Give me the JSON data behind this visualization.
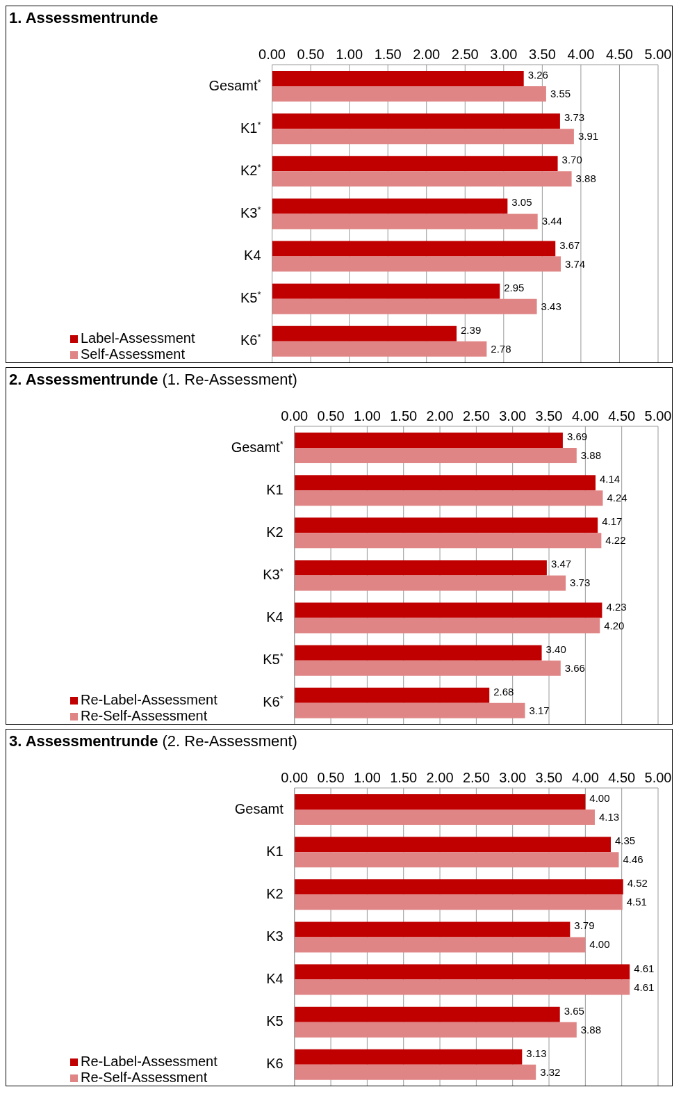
{
  "chart_data": [
    {
      "type": "bar",
      "orientation": "horizontal",
      "title": "1. Assessmentrunde",
      "categories": [
        "Gesamt$^{*}$",
        "K1$^{*}$",
        "K2$^{*}$",
        "K3$^{*}$",
        "K4",
        "K5$^{*}$",
        "K6$^{*}$"
      ],
      "xlim": [
        0,
        5
      ],
      "xticks": [
        {
          "value": 0,
          "label": "0.00"
        },
        {
          "value": 0.5,
          "label": "0.50"
        },
        {
          "value": 1,
          "label": "1.00"
        },
        {
          "value": 1.5,
          "label": "1.50"
        },
        {
          "value": 2,
          "label": "2.00"
        },
        {
          "value": 2.5,
          "label": "2.50"
        },
        {
          "value": 3,
          "label": "3.00"
        },
        {
          "value": 3.5,
          "label": "3.50"
        },
        {
          "value": 4,
          "label": "4.00"
        },
        {
          "value": 4.5,
          "label": "4.50"
        },
        {
          "value": 5,
          "label": "5.00"
        }
      ],
      "grid": "x",
      "legend": "bottom left",
      "series": [
        {
          "name": "Label-Assessment",
          "color": "#c00000",
          "values": [
            3.26,
            3.73,
            3.7,
            3.05,
            3.67,
            2.95,
            2.39
          ],
          "value_labels": [
            "3.26",
            "3.73",
            "3.70",
            "3.05",
            "3.67",
            "2.95",
            "2.39"
          ]
        },
        {
          "name": "Self-Assessment",
          "color": "#e08585",
          "values": [
            3.55,
            3.91,
            3.88,
            3.44,
            3.74,
            3.43,
            2.78
          ],
          "value_labels": [
            "3.55",
            "3.91",
            "3.88",
            "3.44",
            "3.74",
            "3.43",
            "2.78"
          ]
        }
      ]
    },
    {
      "type": "bar",
      "orientation": "horizontal",
      "title": "2. Assessmentrunde",
      "subtitle": "(1. Re-Assessment)",
      "categories": [
        "Gesamt$^{*}$",
        "K1",
        "K2",
        "K3$^{*}$",
        "K4",
        "K5$^{*}$",
        "K6$^{*}$"
      ],
      "xlim": [
        0,
        5
      ],
      "xticks": [
        {
          "value": 0,
          "label": "0.00"
        },
        {
          "value": 0.5,
          "label": "0.50"
        },
        {
          "value": 1,
          "label": "1.00"
        },
        {
          "value": 1.5,
          "label": "1.50"
        },
        {
          "value": 2,
          "label": "2.00"
        },
        {
          "value": 2.5,
          "label": "2.50"
        },
        {
          "value": 3,
          "label": "3.00"
        },
        {
          "value": 3.5,
          "label": "3.50"
        },
        {
          "value": 4,
          "label": "4.00"
        },
        {
          "value": 4.5,
          "label": "4.50"
        },
        {
          "value": 5,
          "label": "5.00"
        }
      ],
      "grid": "x",
      "legend": "bottom left",
      "series": [
        {
          "name": "Re-Label-Assessment",
          "color": "#c00000",
          "values": [
            3.69,
            4.14,
            4.17,
            3.47,
            4.23,
            3.4,
            2.68
          ],
          "value_labels": [
            "3.69",
            "4.14",
            "4.17",
            "3.47",
            "4.23",
            "3.40",
            "2.68"
          ]
        },
        {
          "name": "Re-Self-Assessment",
          "color": "#e08585",
          "values": [
            3.88,
            4.24,
            4.22,
            3.73,
            4.2,
            3.66,
            3.17
          ],
          "value_labels": [
            "3.88",
            "4.24",
            "4.22",
            "3.73",
            "4.20",
            "3.66",
            "3.17"
          ]
        }
      ]
    },
    {
      "type": "bar",
      "orientation": "horizontal",
      "title": "3. Assessmentrunde",
      "subtitle": "(2. Re-Assessment)",
      "categories": [
        "Gesamt",
        "K1",
        "K2",
        "K3",
        "K4",
        "K5",
        "K6"
      ],
      "xlim": [
        0,
        5
      ],
      "xticks": [
        {
          "value": 0,
          "label": "0.00"
        },
        {
          "value": 0.5,
          "label": "0.50"
        },
        {
          "value": 1,
          "label": "1.00"
        },
        {
          "value": 1.5,
          "label": "1.50"
        },
        {
          "value": 2,
          "label": "2.00"
        },
        {
          "value": 2.5,
          "label": "2.50"
        },
        {
          "value": 3,
          "label": "3.00"
        },
        {
          "value": 3.5,
          "label": "3.50"
        },
        {
          "value": 4,
          "label": "4.00"
        },
        {
          "value": 4.5,
          "label": "4.50"
        },
        {
          "value": 5,
          "label": "5.00"
        }
      ],
      "grid": "x",
      "legend": "bottom left",
      "series": [
        {
          "name": "Re-Label-Assessment",
          "color": "#c00000",
          "values": [
            4.0,
            4.35,
            4.52,
            3.79,
            4.61,
            3.65,
            3.13
          ],
          "value_labels": [
            "4.00",
            "4.35",
            "4.52",
            "3.79",
            "4.61",
            "3.65",
            "3.13"
          ]
        },
        {
          "name": "Re-Self-Assessment",
          "color": "#e08585",
          "values": [
            4.13,
            4.46,
            4.51,
            4.0,
            4.61,
            3.88,
            3.32
          ],
          "value_labels": [
            "4.13",
            "4.46",
            "4.51",
            "4.00",
            "4.61",
            "3.88",
            "3.32"
          ]
        }
      ]
    }
  ]
}
